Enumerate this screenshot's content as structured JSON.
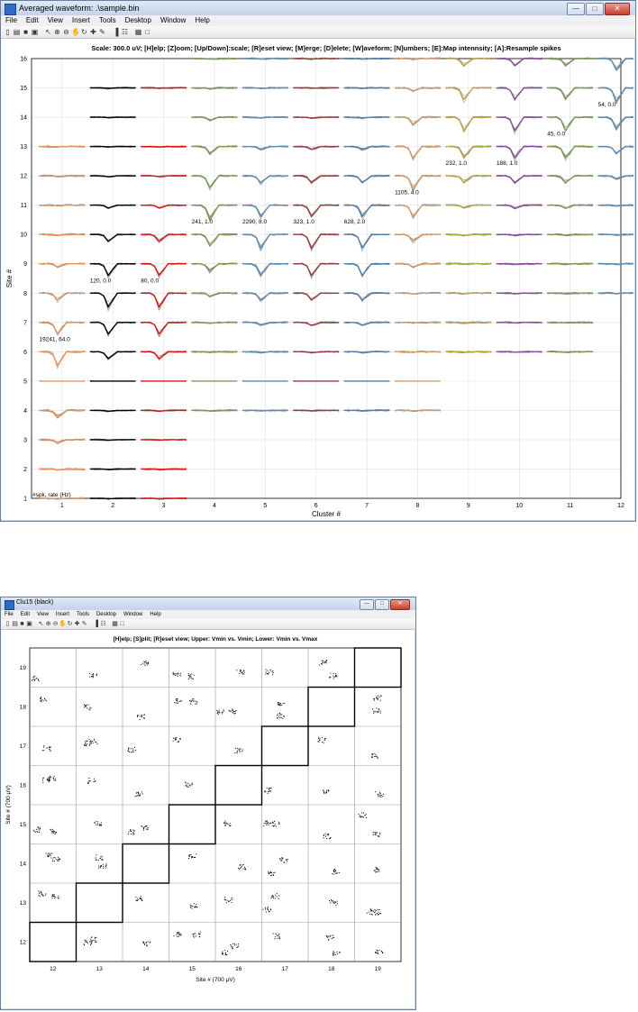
{
  "window1": {
    "title": "Averaged waveform: .\\sample.bin",
    "menu": [
      "File",
      "Edit",
      "View",
      "Insert",
      "Tools",
      "Desktop",
      "Window",
      "Help"
    ],
    "toolbar_icons": [
      "new-file-icon",
      "open-folder-icon",
      "save-icon",
      "print-icon",
      "pointer-icon",
      "zoom-in-icon",
      "zoom-out-icon",
      "pan-icon",
      "rotate-icon",
      "data-cursor-icon",
      "brush-icon",
      "colorbar-icon",
      "legend-icon",
      "grid-icon",
      "fullscreen-icon"
    ],
    "plot": {
      "title": "Scale: 300.0 uV; [H]elp; [Z]oom; [Up/Down]:scale; [R]eset view; [M]erge; [D]elete; [W]aveform; [N]umbers; [E]:Map intennsity; [A]:Resample spikes",
      "xlabel": "Cluster #",
      "ylabel": "Site #",
      "corner_label": "#spk, rate (Hz)",
      "xticks": [
        "1",
        "2",
        "3",
        "4",
        "5",
        "6",
        "7",
        "8",
        "9",
        "10",
        "11",
        "12"
      ],
      "yticks": [
        "1",
        "2",
        "3",
        "4",
        "5",
        "6",
        "7",
        "8",
        "9",
        "10",
        "11",
        "12",
        "13",
        "14",
        "15",
        "16"
      ],
      "cluster_annotations": [
        {
          "cluster": 1,
          "site": 6.4,
          "text": "19241, 64.0"
        },
        {
          "cluster": 2,
          "site": 8.4,
          "text": "120, 0.0"
        },
        {
          "cluster": 3,
          "site": 8.4,
          "text": "80, 0.0"
        },
        {
          "cluster": 4,
          "site": 10.4,
          "text": "241, 1.0"
        },
        {
          "cluster": 5,
          "site": 10.4,
          "text": "2290, 8.0"
        },
        {
          "cluster": 6,
          "site": 10.4,
          "text": "323, 1.0"
        },
        {
          "cluster": 7,
          "site": 10.4,
          "text": "628, 2.0"
        },
        {
          "cluster": 8,
          "site": 11.4,
          "text": "1105, 4.0"
        },
        {
          "cluster": 9,
          "site": 12.4,
          "text": "232, 1.0"
        },
        {
          "cluster": 10,
          "site": 12.4,
          "text": "188, 1.0"
        },
        {
          "cluster": 11,
          "site": 13.4,
          "text": "45, 0.0"
        },
        {
          "cluster": 12,
          "site": 14.4,
          "text": "54, 0.0"
        }
      ],
      "cluster_colors": [
        "#e8925a",
        "#000000",
        "#e01010",
        "#7a9a52",
        "#5b8db0",
        "#9a3a3a",
        "#4d7fa8",
        "#d49a6a",
        "#b8a83a",
        "#8a4a9a",
        "#7a9a52",
        "#5b8db0"
      ]
    }
  },
  "window2": {
    "title": "Clu15 (black)",
    "menu": [
      "File",
      "Edit",
      "View",
      "Insert",
      "Tools",
      "Desktop",
      "Window",
      "Help"
    ],
    "toolbar_icons": [
      "new-file-icon",
      "open-folder-icon",
      "save-icon",
      "print-icon",
      "pointer-icon",
      "zoom-in-icon",
      "zoom-out-icon",
      "pan-icon",
      "rotate-icon",
      "data-cursor-icon",
      "brush-icon",
      "colorbar-icon",
      "legend-icon",
      "grid-icon",
      "fullscreen-icon"
    ],
    "plot": {
      "title": "[H]elp; [S]plit; [R]eset view; Upper: Vmin vs. Vmin; Lower: Vmin vs. Vmax",
      "xlabel": "Site # (700 μV)",
      "ylabel": "Site # (700 μV)",
      "xticks": [
        "12",
        "13",
        "14",
        "15",
        "16",
        "17",
        "18",
        "19"
      ],
      "yticks": [
        "12",
        "13",
        "14",
        "15",
        "16",
        "17",
        "18",
        "19"
      ]
    }
  }
}
